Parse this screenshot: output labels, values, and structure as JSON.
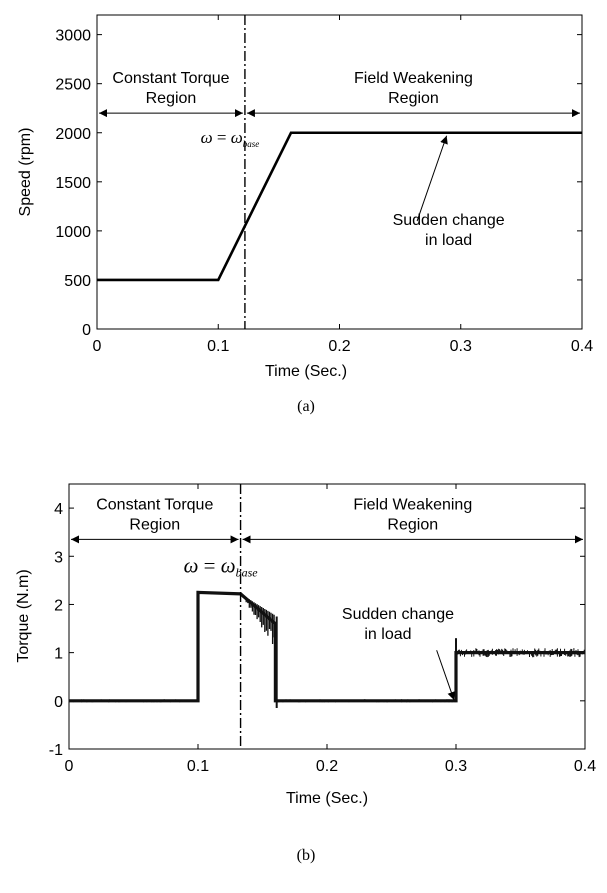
{
  "chart_data": [
    {
      "type": "line",
      "caption": "(a)",
      "xlabel": "Time (Sec.)",
      "ylabel": "Speed (rpm)",
      "xlim": [
        0,
        0.4
      ],
      "ylim": [
        0,
        3200
      ],
      "xticks": [
        0,
        0.1,
        0.2,
        0.3,
        0.4
      ],
      "xtick_labels": [
        "0",
        "0.1",
        "0.2",
        "0.3",
        "0.4"
      ],
      "yticks": [
        0,
        500,
        1000,
        1500,
        2000,
        2500,
        3000
      ],
      "ytick_labels": [
        "0",
        "500",
        "1000",
        "1500",
        "2000",
        "2500",
        "3000"
      ],
      "grid": false,
      "series": [
        {
          "x": [
            0,
            0.1,
            0.16,
            0.4
          ],
          "y": [
            500,
            500,
            2000,
            2000
          ]
        }
      ],
      "base_line_x": 0.122,
      "region_arrow_y": 2200,
      "region_left": [
        "Constant Torque",
        "Region"
      ],
      "region_right": [
        "Field Weakening",
        "Region"
      ],
      "omega_label": {
        "lhs": "ω",
        "eq": "=",
        "rhs": "ω",
        "sub": "base"
      },
      "annotation": [
        "Sudden change",
        "in load"
      ],
      "annotation_target": [
        0.29,
        2000
      ]
    },
    {
      "type": "line",
      "caption": "(b)",
      "xlabel": "Time (Sec.)",
      "ylabel": "Torque (N.m)",
      "xlim": [
        0,
        0.4
      ],
      "ylim": [
        -1,
        4.5
      ],
      "xticks": [
        0,
        0.1,
        0.2,
        0.3,
        0.4
      ],
      "xtick_labels": [
        "0",
        "0.1",
        "0.2",
        "0.3",
        "0.4"
      ],
      "yticks": [
        -1,
        0,
        1,
        2,
        3,
        4
      ],
      "ytick_labels": [
        "-1",
        "0",
        "1",
        "2",
        "3",
        "4"
      ],
      "grid": false,
      "series": [
        {
          "x": [
            0,
            0.1,
            0.1,
            0.133,
            0.16,
            0.16,
            0.3,
            0.3,
            0.4
          ],
          "y": [
            0,
            0,
            2.25,
            2.22,
            1.6,
            0,
            0,
            1.0,
            1.0
          ]
        }
      ],
      "base_line_x": 0.133,
      "region_arrow_y": 3.35,
      "region_left": [
        "Constant Torque",
        "Region"
      ],
      "region_right": [
        "Field Weakening",
        "Region"
      ],
      "omega_label": {
        "lhs": "ω",
        "eq": "=",
        "rhs": "ω",
        "sub": "base"
      },
      "annotation": [
        "Sudden change",
        "in load"
      ],
      "annotation_target": [
        0.3,
        0.08
      ]
    }
  ]
}
